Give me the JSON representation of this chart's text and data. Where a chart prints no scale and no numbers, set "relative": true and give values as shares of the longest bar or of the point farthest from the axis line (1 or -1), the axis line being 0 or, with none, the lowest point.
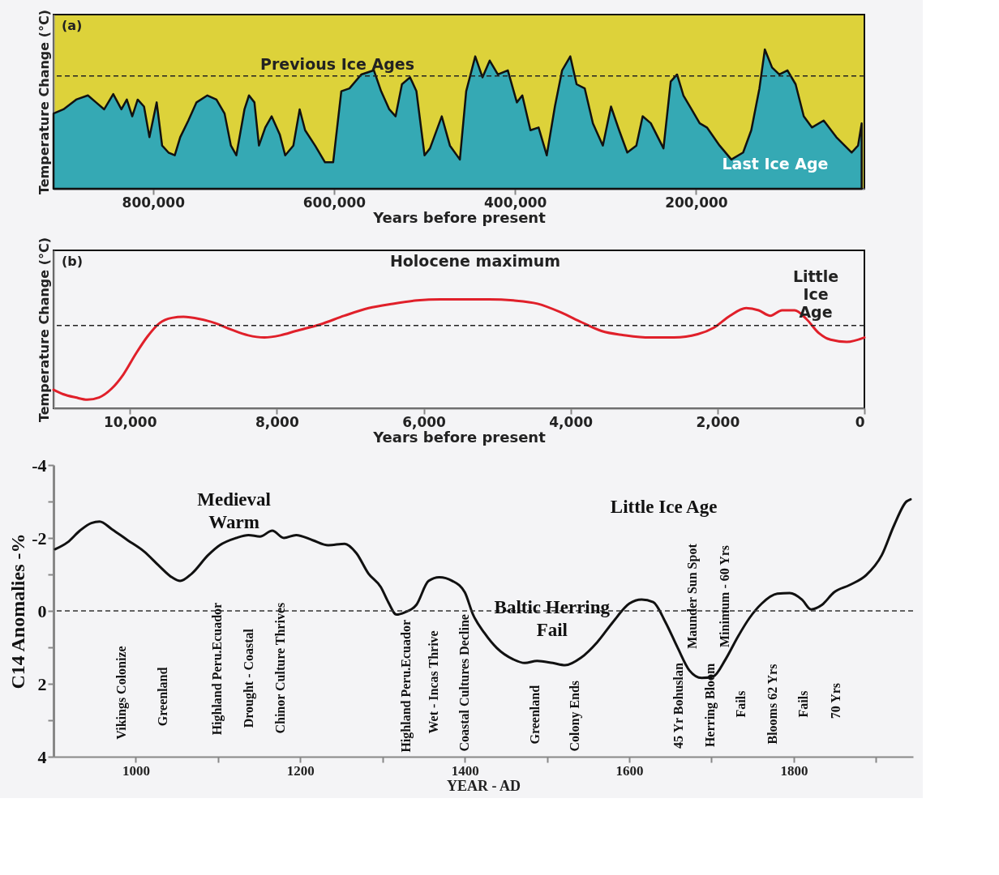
{
  "chart_data": [
    {
      "type": "area",
      "relative": true,
      "xlabel": "Years before present",
      "ylabel": "Temperature Change (°C)",
      "tick_labels": "x",
      "xlim": [
        910000,
        14000
      ],
      "xticks": [
        {
          "value": 800000,
          "label": "800,000"
        },
        {
          "value": 600000,
          "label": "600,000"
        },
        {
          "value": 400000,
          "label": "400,000"
        },
        {
          "value": 200000,
          "label": "200,000"
        }
      ],
      "annotations": [
        "(a)",
        "Last Ice Age"
      ],
      "ref_lines": [
        {
          "axis": "y",
          "value": 0.81,
          "label": "Previous Ice Ages",
          "line_style": "dashed",
          "color": "#222222"
        }
      ],
      "series": [
        {
          "color": "#35a9b4",
          "x": [
            910000,
            899000,
            885000,
            872000,
            863000,
            854000,
            844000,
            835000,
            829000,
            823000,
            817000,
            810000,
            804000,
            796000,
            790000,
            783000,
            776000,
            770000,
            761000,
            752000,
            740000,
            730000,
            721000,
            714000,
            708000,
            699000,
            694000,
            688000,
            683000,
            676000,
            669000,
            660000,
            654000,
            645000,
            638000,
            632000,
            621000,
            610000,
            601000,
            592000,
            583000,
            570000,
            556000,
            548000,
            539000,
            532000,
            525000,
            516000,
            509000,
            500000,
            494000,
            481000,
            472000,
            461000,
            454000,
            444000,
            436000,
            428000,
            419000,
            408000,
            398000,
            392000,
            383000,
            374000,
            365000,
            356000,
            348000,
            339000,
            332000,
            323000,
            314000,
            303000,
            294000,
            285000,
            276000,
            266000,
            259000,
            250000,
            236000,
            228000,
            221000,
            214000,
            205000,
            196000,
            188000,
            174000,
            161000,
            148000,
            139000,
            130000,
            124000,
            116000,
            108000,
            99000,
            90000,
            81000,
            72000,
            59000,
            45000,
            28000,
            21000,
            17000
          ],
          "values": [
            0.54,
            0.57,
            0.64,
            0.67,
            0.62,
            0.57,
            0.68,
            0.57,
            0.64,
            0.52,
            0.64,
            0.59,
            0.37,
            0.62,
            0.31,
            0.26,
            0.24,
            0.37,
            0.49,
            0.62,
            0.67,
            0.64,
            0.54,
            0.31,
            0.24,
            0.57,
            0.67,
            0.62,
            0.31,
            0.44,
            0.52,
            0.39,
            0.24,
            0.31,
            0.57,
            0.42,
            0.31,
            0.19,
            0.19,
            0.7,
            0.72,
            0.82,
            0.85,
            0.7,
            0.57,
            0.52,
            0.75,
            0.8,
            0.7,
            0.24,
            0.29,
            0.52,
            0.31,
            0.21,
            0.7,
            0.95,
            0.8,
            0.92,
            0.82,
            0.85,
            0.62,
            0.67,
            0.42,
            0.44,
            0.24,
            0.59,
            0.85,
            0.95,
            0.75,
            0.72,
            0.47,
            0.31,
            0.59,
            0.42,
            0.26,
            0.31,
            0.52,
            0.47,
            0.29,
            0.77,
            0.82,
            0.67,
            0.57,
            0.47,
            0.44,
            0.31,
            0.21,
            0.26,
            0.42,
            0.72,
            1.0,
            0.87,
            0.82,
            0.85,
            0.75,
            0.52,
            0.44,
            0.49,
            0.37,
            0.26,
            0.31,
            0.47
          ]
        }
      ]
    },
    {
      "type": "line",
      "relative": true,
      "xlabel": "Years before present",
      "ylabel": "Temperature Change (°C)",
      "tick_labels": "x",
      "xlim": [
        11040,
        0
      ],
      "xticks": [
        {
          "value": 10000,
          "label": "10,000"
        },
        {
          "value": 8000,
          "label": "8,000"
        },
        {
          "value": 6000,
          "label": "6,000"
        },
        {
          "value": 4000,
          "label": "4,000"
        },
        {
          "value": 2000,
          "label": "2,000"
        },
        0
      ],
      "annotations": [
        "(b)",
        "Holocene maximum",
        "Little\nIce\nAge"
      ],
      "ref_lines": [
        {
          "axis": "y",
          "value": 0.76,
          "line_style": "dashed",
          "color": "#222222"
        }
      ],
      "series": [
        {
          "color": "#e0202a",
          "x": [
            11040,
            10910,
            10740,
            10580,
            10420,
            10250,
            10090,
            9920,
            9760,
            9600,
            9430,
            9270,
            9050,
            8830,
            8610,
            8390,
            8170,
            7950,
            7740,
            7410,
            7080,
            6750,
            6420,
            6090,
            5770,
            5440,
            5110,
            4780,
            4450,
            4130,
            3850,
            3580,
            3250,
            2920,
            2590,
            2270,
            2050,
            1830,
            1610,
            1440,
            1280,
            1120,
            950,
            790,
            620,
            460,
            240,
            0
          ],
          "values": [
            0.17,
            0.13,
            0.1,
            0.08,
            0.1,
            0.18,
            0.31,
            0.5,
            0.66,
            0.78,
            0.83,
            0.84,
            0.82,
            0.78,
            0.72,
            0.67,
            0.65,
            0.67,
            0.71,
            0.77,
            0.85,
            0.92,
            0.96,
            0.99,
            1.0,
            1.0,
            1.0,
            0.99,
            0.96,
            0.88,
            0.79,
            0.71,
            0.67,
            0.65,
            0.65,
            0.68,
            0.74,
            0.85,
            0.92,
            0.9,
            0.85,
            0.9,
            0.9,
            0.82,
            0.69,
            0.63,
            0.61,
            0.65
          ]
        }
      ]
    },
    {
      "type": "line",
      "xlabel": "YEAR - AD",
      "ylabel": "C14 Anomalies -%",
      "xlim": [
        900,
        1945
      ],
      "ylim": [
        4,
        -4
      ],
      "xticks": [
        1000,
        {
          "value": 1100,
          "label": null
        },
        1200,
        {
          "value": 1300,
          "label": null
        },
        1400,
        {
          "value": 1500,
          "label": null
        },
        1600,
        {
          "value": 1700,
          "label": null
        },
        1800,
        {
          "value": 1900,
          "label": null
        }
      ],
      "yticks": [
        -4,
        {
          "value": -3,
          "label": null
        },
        -2,
        {
          "value": -1,
          "label": null
        },
        0,
        {
          "value": 1,
          "label": null
        },
        2,
        {
          "value": 3,
          "label": null
        },
        4
      ],
      "ref_lines": [
        {
          "axis": "y",
          "value": 0,
          "line_style": "dashed",
          "color": "#333333"
        }
      ],
      "annotations": [
        "Medieval\nWarm",
        "Little Ice Age",
        "Baltic Herring\nFail",
        "Vikings Colonize",
        "Greenland",
        "Highland Peru.Ecuador",
        "Drought - Coastal",
        "Chinor Culture Thrives",
        "Highland Peru.Ecuador",
        "Wet - Incas Thrive",
        "Coastal Cultures Decline",
        "Greenland",
        "Colony Ends",
        "45 Yr Bohuslan",
        "Herring Bloom",
        "Fails",
        "Maunder Sun Spot",
        "Minimum - 60 Yrs",
        "Blooms 62 Yrs",
        "Fails",
        "70 Yrs"
      ],
      "series": [
        {
          "color": "#111111",
          "x": [
            902,
            917,
            932,
            946,
            956,
            971,
            990,
            1010,
            1029,
            1044,
            1054,
            1068,
            1088,
            1102,
            1122,
            1137,
            1151,
            1166,
            1180,
            1195,
            1215,
            1234,
            1254,
            1268,
            1283,
            1298,
            1307,
            1317,
            1327,
            1341,
            1356,
            1369,
            1385,
            1400,
            1410,
            1424,
            1439,
            1459,
            1473,
            1488,
            1507,
            1522,
            1541,
            1561,
            1580,
            1600,
            1615,
            1629,
            1644,
            1659,
            1673,
            1688,
            1702,
            1717,
            1732,
            1746,
            1761,
            1780,
            1795,
            1810,
            1821,
            1834,
            1849,
            1868,
            1888,
            1907,
            1922,
            1937,
            1942
          ],
          "values": [
            -1.69,
            -1.88,
            -2.2,
            -2.41,
            -2.45,
            -2.24,
            -1.94,
            -1.63,
            -1.22,
            -0.92,
            -0.82,
            -1.02,
            -1.53,
            -1.8,
            -2.0,
            -2.08,
            -2.04,
            -2.2,
            -2.0,
            -2.08,
            -1.94,
            -1.8,
            -1.84,
            -1.59,
            -1.02,
            -0.65,
            -0.24,
            0.1,
            0.04,
            -0.16,
            -0.82,
            -0.92,
            -0.82,
            -0.51,
            0.1,
            0.61,
            1.02,
            1.33,
            1.43,
            1.37,
            1.43,
            1.49,
            1.29,
            0.86,
            0.31,
            -0.2,
            -0.31,
            -0.24,
            0.31,
            1.02,
            1.63,
            1.84,
            1.8,
            1.33,
            0.71,
            0.2,
            -0.2,
            -0.47,
            -0.49,
            -0.31,
            -0.04,
            -0.16,
            -0.51,
            -0.71,
            -0.98,
            -1.53,
            -2.35,
            -3.0,
            -3.06
          ]
        }
      ]
    }
  ]
}
